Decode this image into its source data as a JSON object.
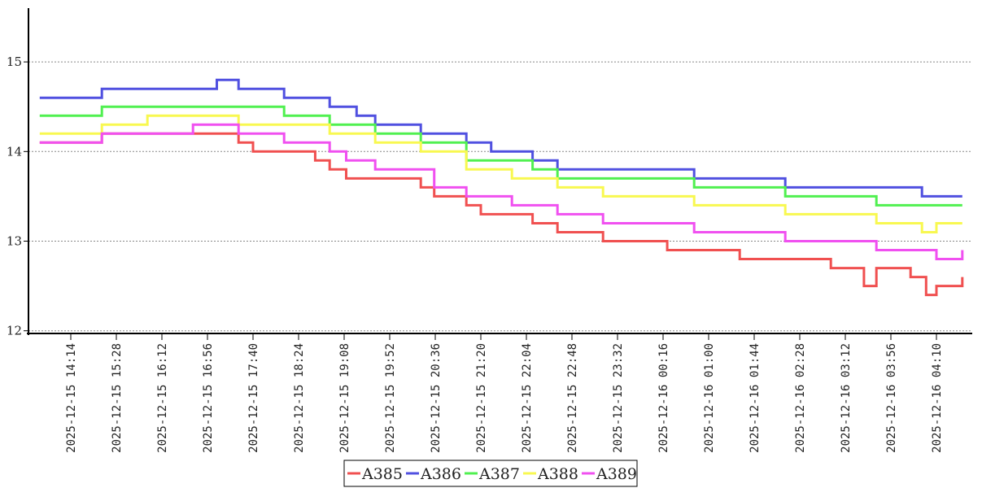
{
  "chart_data": {
    "type": "line",
    "title": "",
    "xlabel": "",
    "ylabel": "",
    "ylim": [
      11.97,
      15.6
    ],
    "y_ticks": [
      12,
      13,
      14,
      15
    ],
    "grid": "horizontal dotted",
    "legend_placement": "bottom-center",
    "x_tick_labels": [
      "2025-12-15 14:14",
      "2025-12-15 15:28",
      "2025-12-15 16:12",
      "2025-12-15 16:56",
      "2025-12-15 17:40",
      "2025-12-15 18:24",
      "2025-12-15 19:08",
      "2025-12-15 19:52",
      "2025-12-15 20:36",
      "2025-12-15 21:20",
      "2025-12-15 22:04",
      "2025-12-15 22:48",
      "2025-12-15 23:32",
      "2025-12-16 00:16",
      "2025-12-16 01:00",
      "2025-12-16 01:44",
      "2025-12-16 02:28",
      "2025-12-16 03:12",
      "2025-12-16 03:56",
      "2025-12-16 04:10"
    ],
    "series": [
      {
        "name": "A385",
        "color": "#f05050",
        "points": [
          [
            "2025-12-15 13:44",
            14.1
          ],
          [
            "2025-12-15 14:44",
            14.2
          ],
          [
            "2025-12-15 16:12",
            14.2
          ],
          [
            "2025-12-15 16:56",
            14.1
          ],
          [
            "2025-12-15 17:10",
            14.0
          ],
          [
            "2025-12-15 17:40",
            14.0
          ],
          [
            "2025-12-15 18:10",
            13.9
          ],
          [
            "2025-12-15 18:24",
            13.8
          ],
          [
            "2025-12-15 18:40",
            13.7
          ],
          [
            "2025-12-15 19:08",
            13.7
          ],
          [
            "2025-12-15 19:52",
            13.6
          ],
          [
            "2025-12-15 20:05",
            13.5
          ],
          [
            "2025-12-15 20:36",
            13.4
          ],
          [
            "2025-12-15 20:50",
            13.3
          ],
          [
            "2025-12-15 21:30",
            13.3
          ],
          [
            "2025-12-15 21:40",
            13.2
          ],
          [
            "2025-12-15 22:04",
            13.1
          ],
          [
            "2025-12-15 22:48",
            13.0
          ],
          [
            "2025-12-15 23:32",
            13.0
          ],
          [
            "2025-12-15 23:50",
            12.9
          ],
          [
            "2025-12-16 00:16",
            12.9
          ],
          [
            "2025-12-16 01:00",
            12.8
          ],
          [
            "2025-12-16 01:44",
            12.8
          ],
          [
            "2025-12-16 02:28",
            12.7
          ],
          [
            "2025-12-16 03:00",
            12.5
          ],
          [
            "2025-12-16 03:12",
            12.7
          ],
          [
            "2025-12-16 03:45",
            12.6
          ],
          [
            "2025-12-16 04:00",
            12.4
          ],
          [
            "2025-12-16 04:10",
            12.5
          ],
          [
            "2025-12-16 04:35",
            12.6
          ]
        ]
      },
      {
        "name": "A386",
        "color": "#5050e0",
        "points": [
          [
            "2025-12-15 13:44",
            14.6
          ],
          [
            "2025-12-15 14:44",
            14.7
          ],
          [
            "2025-12-15 16:12",
            14.7
          ],
          [
            "2025-12-15 16:35",
            14.8
          ],
          [
            "2025-12-15 16:56",
            14.7
          ],
          [
            "2025-12-15 17:40",
            14.6
          ],
          [
            "2025-12-15 18:24",
            14.5
          ],
          [
            "2025-12-15 18:50",
            14.4
          ],
          [
            "2025-12-15 19:08",
            14.3
          ],
          [
            "2025-12-15 19:52",
            14.2
          ],
          [
            "2025-12-15 20:36",
            14.1
          ],
          [
            "2025-12-15 21:00",
            14.0
          ],
          [
            "2025-12-15 21:40",
            13.9
          ],
          [
            "2025-12-15 22:04",
            13.8
          ],
          [
            "2025-12-15 22:48",
            13.8
          ],
          [
            "2025-12-15 23:32",
            13.8
          ],
          [
            "2025-12-16 00:16",
            13.7
          ],
          [
            "2025-12-16 01:00",
            13.7
          ],
          [
            "2025-12-16 01:44",
            13.6
          ],
          [
            "2025-12-16 02:28",
            13.6
          ],
          [
            "2025-12-16 03:12",
            13.6
          ],
          [
            "2025-12-16 03:56",
            13.5
          ],
          [
            "2025-12-16 04:10",
            13.5
          ],
          [
            "2025-12-16 04:35",
            13.5
          ]
        ]
      },
      {
        "name": "A387",
        "color": "#50f050",
        "points": [
          [
            "2025-12-15 13:44",
            14.4
          ],
          [
            "2025-12-15 14:44",
            14.5
          ],
          [
            "2025-12-15 16:12",
            14.5
          ],
          [
            "2025-12-15 16:56",
            14.5
          ],
          [
            "2025-12-15 17:40",
            14.4
          ],
          [
            "2025-12-15 18:24",
            14.3
          ],
          [
            "2025-12-15 19:08",
            14.2
          ],
          [
            "2025-12-15 19:52",
            14.1
          ],
          [
            "2025-12-15 20:36",
            13.9
          ],
          [
            "2025-12-15 21:20",
            13.9
          ],
          [
            "2025-12-15 21:40",
            13.8
          ],
          [
            "2025-12-15 22:04",
            13.7
          ],
          [
            "2025-12-15 22:48",
            13.7
          ],
          [
            "2025-12-15 23:32",
            13.7
          ],
          [
            "2025-12-16 00:16",
            13.6
          ],
          [
            "2025-12-16 01:00",
            13.6
          ],
          [
            "2025-12-16 01:44",
            13.5
          ],
          [
            "2025-12-16 02:28",
            13.5
          ],
          [
            "2025-12-16 03:12",
            13.4
          ],
          [
            "2025-12-16 03:56",
            13.4
          ],
          [
            "2025-12-16 04:10",
            13.4
          ],
          [
            "2025-12-16 04:35",
            13.4
          ]
        ]
      },
      {
        "name": "A388",
        "color": "#f8f850",
        "points": [
          [
            "2025-12-15 13:44",
            14.2
          ],
          [
            "2025-12-15 14:44",
            14.3
          ],
          [
            "2025-12-15 15:28",
            14.4
          ],
          [
            "2025-12-15 16:12",
            14.4
          ],
          [
            "2025-12-15 16:56",
            14.3
          ],
          [
            "2025-12-15 17:40",
            14.3
          ],
          [
            "2025-12-15 18:24",
            14.2
          ],
          [
            "2025-12-15 19:08",
            14.1
          ],
          [
            "2025-12-15 19:52",
            14.0
          ],
          [
            "2025-12-15 20:36",
            13.8
          ],
          [
            "2025-12-15 21:20",
            13.7
          ],
          [
            "2025-12-15 22:04",
            13.6
          ],
          [
            "2025-12-15 22:48",
            13.5
          ],
          [
            "2025-12-15 23:32",
            13.5
          ],
          [
            "2025-12-16 00:16",
            13.4
          ],
          [
            "2025-12-16 01:00",
            13.4
          ],
          [
            "2025-12-16 01:44",
            13.3
          ],
          [
            "2025-12-16 02:28",
            13.3
          ],
          [
            "2025-12-16 03:12",
            13.2
          ],
          [
            "2025-12-16 03:56",
            13.1
          ],
          [
            "2025-12-16 04:10",
            13.2
          ],
          [
            "2025-12-16 04:35",
            13.2
          ]
        ]
      },
      {
        "name": "A389",
        "color": "#f050f0",
        "points": [
          [
            "2025-12-15 13:44",
            14.1
          ],
          [
            "2025-12-15 14:44",
            14.2
          ],
          [
            "2025-12-15 16:12",
            14.3
          ],
          [
            "2025-12-15 16:56",
            14.2
          ],
          [
            "2025-12-15 17:40",
            14.1
          ],
          [
            "2025-12-15 18:24",
            14.0
          ],
          [
            "2025-12-15 18:40",
            13.9
          ],
          [
            "2025-12-15 19:08",
            13.8
          ],
          [
            "2025-12-15 19:52",
            13.8
          ],
          [
            "2025-12-15 20:05",
            13.6
          ],
          [
            "2025-12-15 20:36",
            13.5
          ],
          [
            "2025-12-15 21:20",
            13.4
          ],
          [
            "2025-12-15 22:04",
            13.3
          ],
          [
            "2025-12-15 22:48",
            13.2
          ],
          [
            "2025-12-15 23:32",
            13.2
          ],
          [
            "2025-12-16 00:16",
            13.1
          ],
          [
            "2025-12-16 01:00",
            13.1
          ],
          [
            "2025-12-16 01:44",
            13.0
          ],
          [
            "2025-12-16 02:28",
            13.0
          ],
          [
            "2025-12-16 03:12",
            12.9
          ],
          [
            "2025-12-16 03:56",
            12.9
          ],
          [
            "2025-12-16 04:10",
            12.8
          ],
          [
            "2025-12-16 04:35",
            12.9
          ]
        ]
      }
    ]
  }
}
